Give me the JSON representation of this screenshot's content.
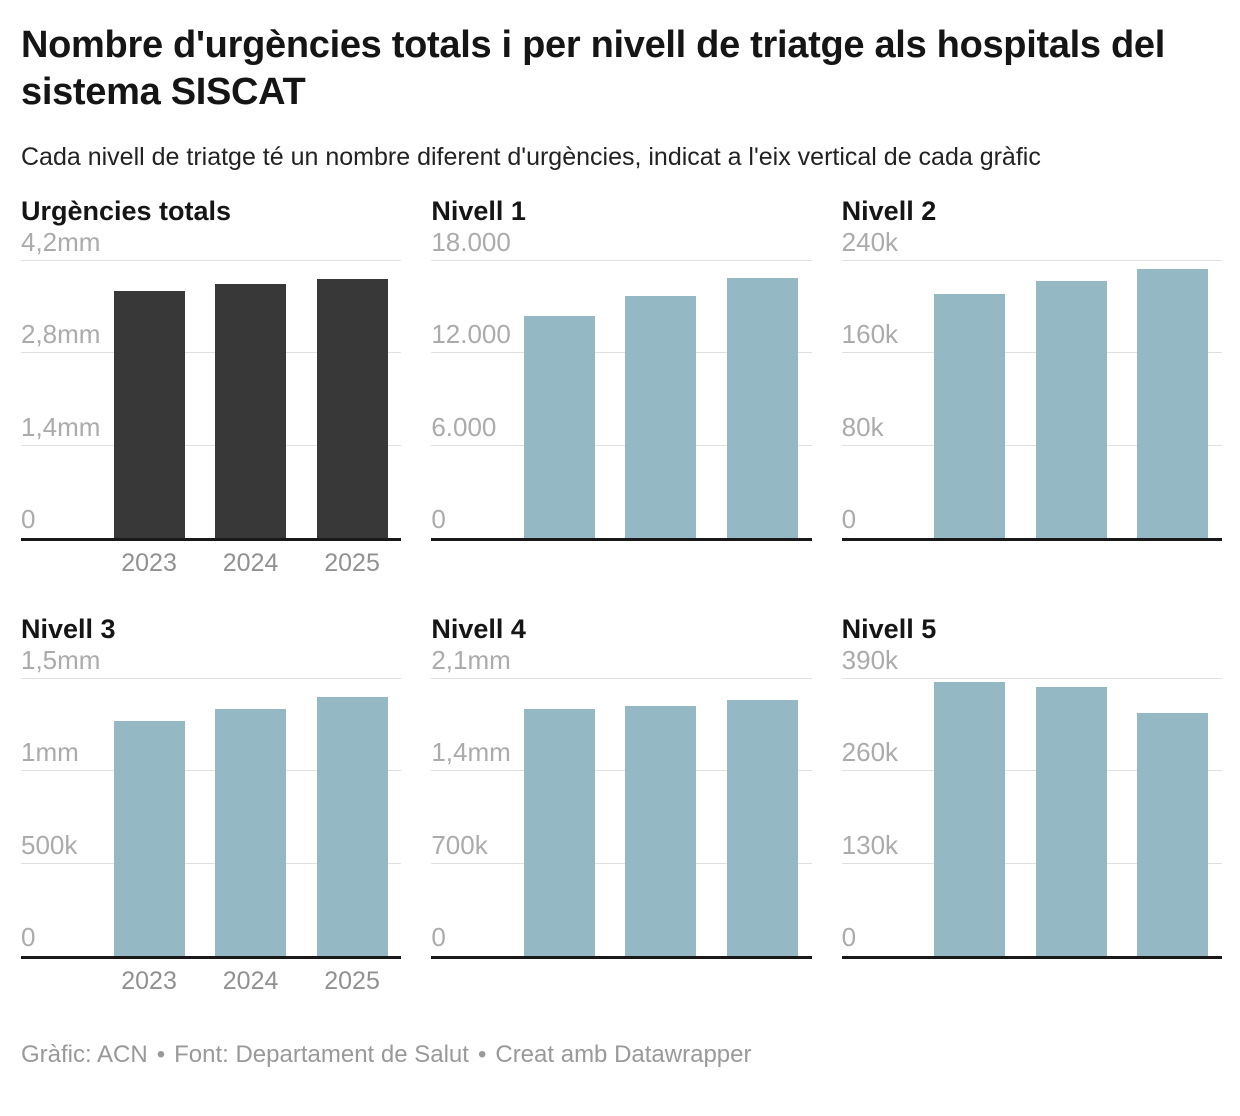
{
  "header": {
    "title": "Nombre d'urgències totals i per nivell de triatge als hospitals del sistema SISCAT",
    "subtitle": "Cada nivell de triatge té un nombre diferent d'urgències, indicat a l'eix vertical de cada gràfic"
  },
  "colors": {
    "dark_bar": "#383838",
    "blue_bar": "#94b8c4",
    "gridline": "#e0e0e0",
    "baseline": "#191919",
    "tick_label": "#ababab",
    "year_label": "#919191",
    "footer_text": "#999999"
  },
  "footer": {
    "credit": "Gràfic: ACN",
    "source": "Font: Departament de Salut",
    "byline": "Creat amb Datawrapper",
    "separator": "•"
  },
  "chart_data": [
    {
      "type": "bar",
      "title": "Urgències totals",
      "categories": [
        "2023",
        "2024",
        "2025"
      ],
      "values": [
        3740000,
        3850000,
        3930000
      ],
      "ylim": [
        0,
        4200000
      ],
      "yticks": [
        {
          "value": 0,
          "label": "0"
        },
        {
          "value": 1400000,
          "label": "1,4mm"
        },
        {
          "value": 2800000,
          "label": "2,8mm"
        },
        {
          "value": 4200000,
          "label": "4,2mm"
        }
      ],
      "bar_color": "#383838",
      "show_x_labels": true,
      "grid": true,
      "legend": "none"
    },
    {
      "type": "bar",
      "title": "Nivell 1",
      "categories": [
        "2023",
        "2024",
        "2025"
      ],
      "values": [
        14400,
        15700,
        16900
      ],
      "ylim": [
        0,
        18000
      ],
      "yticks": [
        {
          "value": 0,
          "label": "0"
        },
        {
          "value": 6000,
          "label": "6.000"
        },
        {
          "value": 12000,
          "label": "12.000"
        },
        {
          "value": 18000,
          "label": "18.000"
        }
      ],
      "bar_color": "#94b8c4",
      "show_x_labels": false,
      "grid": true,
      "legend": "none"
    },
    {
      "type": "bar",
      "title": "Nivell 2",
      "categories": [
        "2023",
        "2024",
        "2025"
      ],
      "values": [
        211000,
        223000,
        233000
      ],
      "ylim": [
        0,
        240000
      ],
      "yticks": [
        {
          "value": 0,
          "label": "0"
        },
        {
          "value": 80000,
          "label": "80k"
        },
        {
          "value": 160000,
          "label": "160k"
        },
        {
          "value": 240000,
          "label": "240k"
        }
      ],
      "bar_color": "#94b8c4",
      "show_x_labels": false,
      "grid": true,
      "legend": "none"
    },
    {
      "type": "bar",
      "title": "Nivell 3",
      "categories": [
        "2023",
        "2024",
        "2025"
      ],
      "values": [
        1270000,
        1335000,
        1400000
      ],
      "ylim": [
        0,
        1500000
      ],
      "yticks": [
        {
          "value": 0,
          "label": "0"
        },
        {
          "value": 500000,
          "label": "500k"
        },
        {
          "value": 1000000,
          "label": "1mm"
        },
        {
          "value": 1500000,
          "label": "1,5mm"
        }
      ],
      "bar_color": "#94b8c4",
      "show_x_labels": true,
      "grid": true,
      "legend": "none"
    },
    {
      "type": "bar",
      "title": "Nivell 4",
      "categories": [
        "2023",
        "2024",
        "2025"
      ],
      "values": [
        1875000,
        1895000,
        1940000
      ],
      "ylim": [
        0,
        2100000
      ],
      "yticks": [
        {
          "value": 0,
          "label": "0"
        },
        {
          "value": 700000,
          "label": "700k"
        },
        {
          "value": 1400000,
          "label": "1,4mm"
        },
        {
          "value": 2100000,
          "label": "2,1mm"
        }
      ],
      "bar_color": "#94b8c4",
      "show_x_labels": false,
      "grid": true,
      "legend": "none"
    },
    {
      "type": "bar",
      "title": "Nivell 5",
      "categories": [
        "2023",
        "2024",
        "2025"
      ],
      "values": [
        386000,
        379000,
        342000
      ],
      "ylim": [
        0,
        390000
      ],
      "yticks": [
        {
          "value": 0,
          "label": "0"
        },
        {
          "value": 130000,
          "label": "130k"
        },
        {
          "value": 260000,
          "label": "260k"
        },
        {
          "value": 390000,
          "label": "390k"
        }
      ],
      "bar_color": "#94b8c4",
      "show_x_labels": false,
      "grid": true,
      "legend": "none"
    }
  ]
}
